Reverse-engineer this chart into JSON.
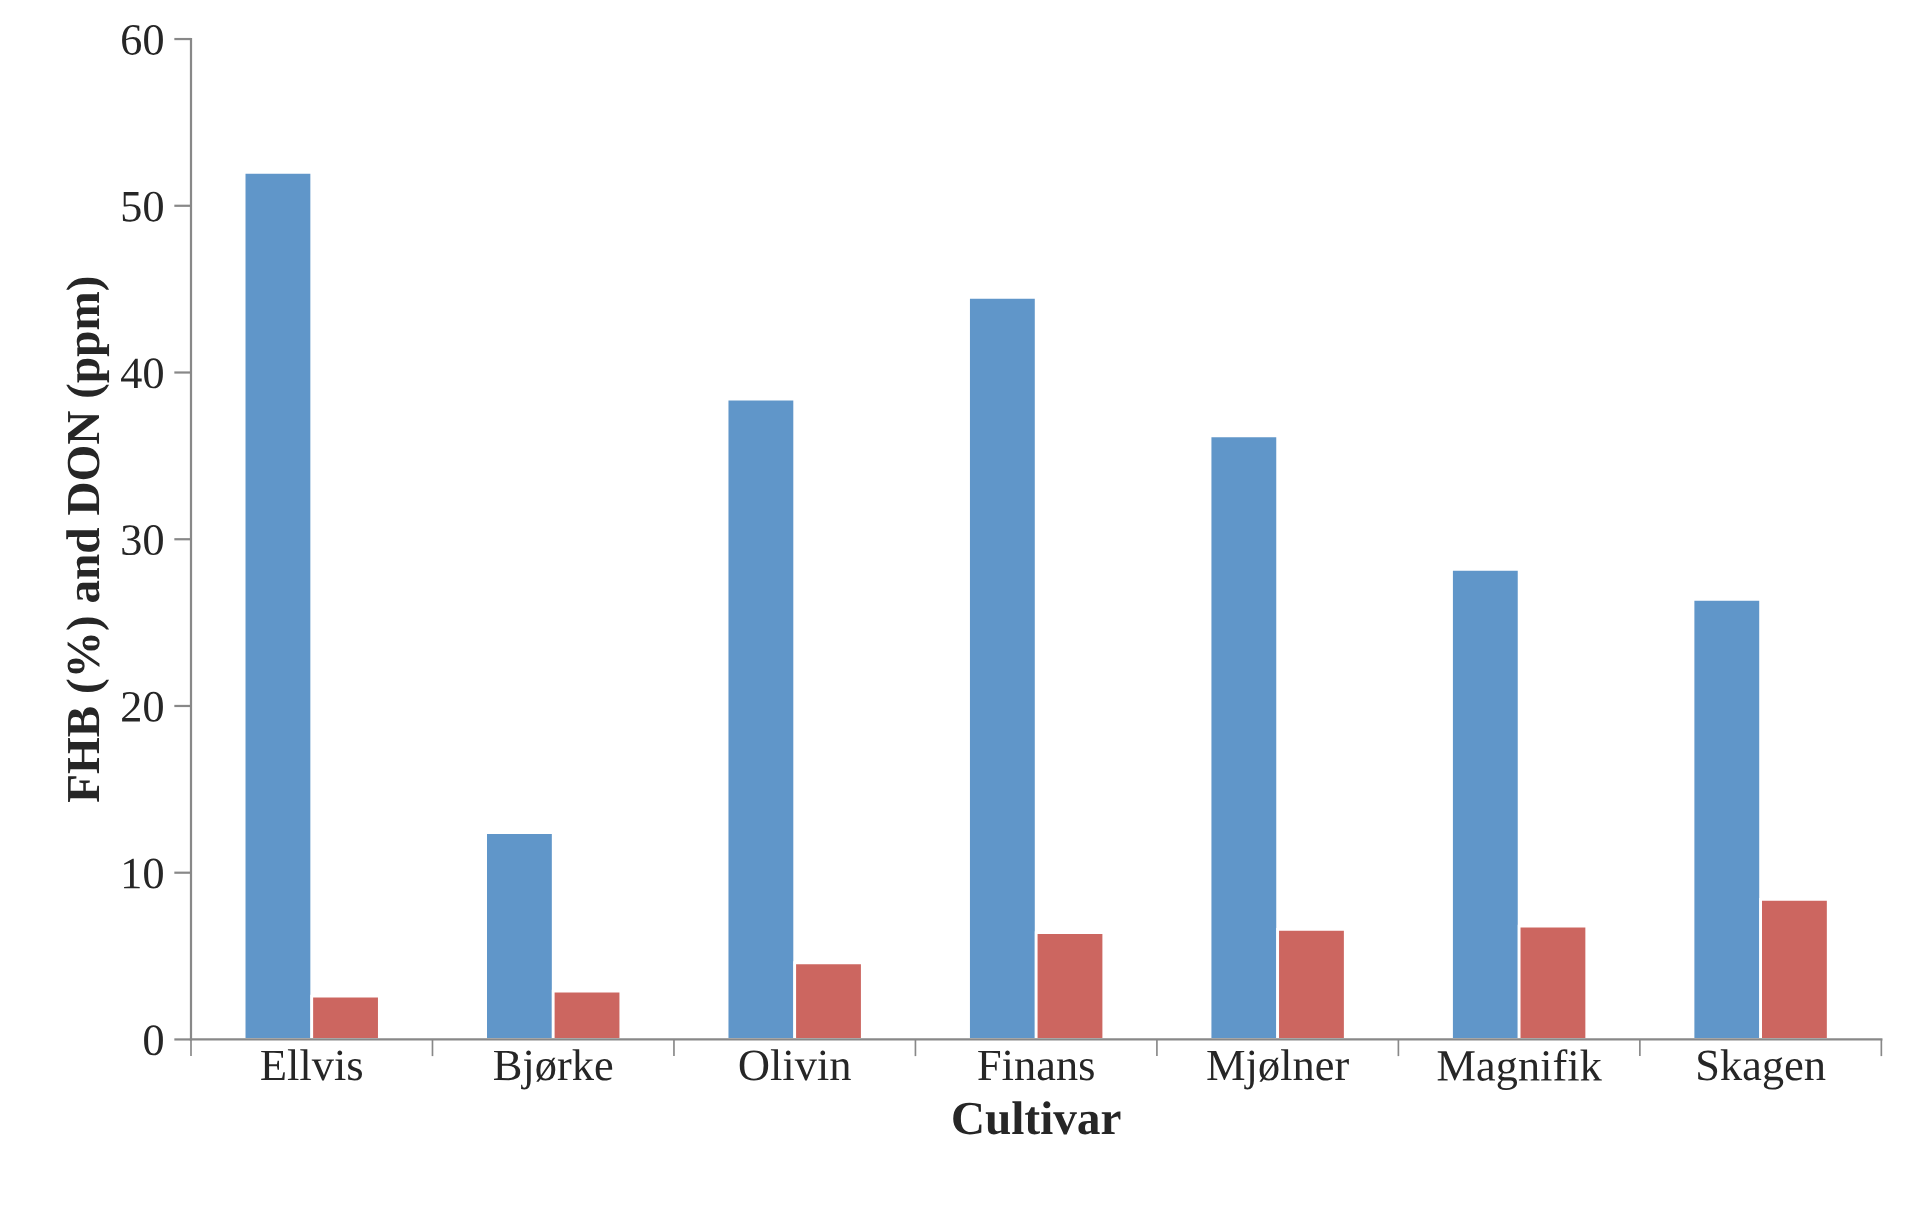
{
  "chart_data": {
    "type": "bar",
    "xlabel": "Cultivar",
    "ylabel": "FHB (%) and DON (ppm)",
    "categories": [
      "Ellvis",
      "Bjørke",
      "Olivin",
      "Finans",
      "Mjølner",
      "Magnifik",
      "Skagen"
    ],
    "series": [
      {
        "color": "#6096c9",
        "values": [
          52,
          12.4,
          38.4,
          44.5,
          36.2,
          28.2,
          26.4
        ]
      },
      {
        "color": "#cc6660",
        "values": [
          2.6,
          2.9,
          4.6,
          6.4,
          6.6,
          6.8,
          8.4
        ]
      }
    ],
    "ylim": [
      0,
      60
    ],
    "yticks": [
      0,
      10,
      20,
      30,
      40,
      50,
      60
    ],
    "grid": false,
    "legend": false
  }
}
